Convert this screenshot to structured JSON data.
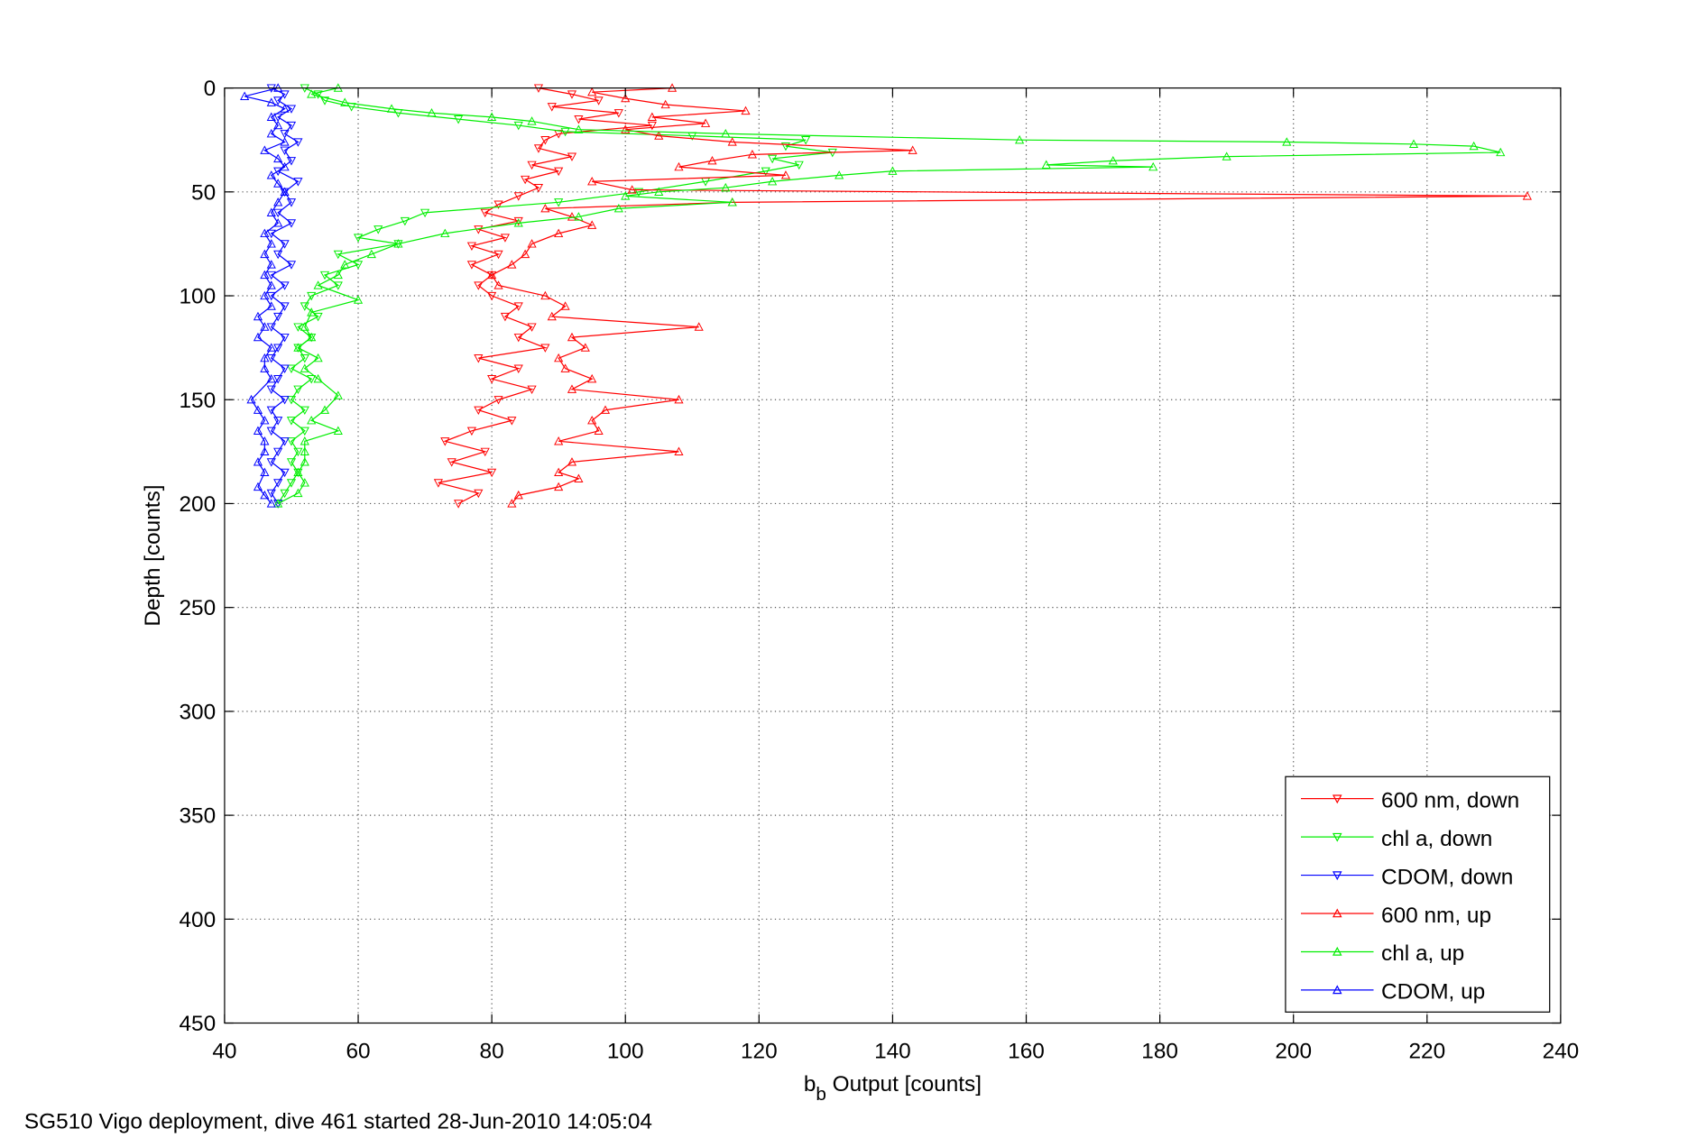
{
  "chart_data": {
    "type": "line",
    "title": "",
    "xlabel_main": "b",
    "xlabel_sub": "b",
    "xlabel_rest": " Output [counts]",
    "ylabel": "Depth [counts]",
    "xlim": [
      40,
      240
    ],
    "ylim": [
      0,
      450
    ],
    "y_reversed": true,
    "grid": true,
    "xticks": [
      40,
      60,
      80,
      100,
      120,
      140,
      160,
      180,
      200,
      220,
      240
    ],
    "yticks": [
      0,
      50,
      100,
      150,
      200,
      250,
      300,
      350,
      400,
      450
    ],
    "legend_position": "bottom-right",
    "footer": "SG510 Vigo deployment, dive 461 started 28-Jun-2010 14:05:04",
    "series": [
      {
        "name": "600 nm, down",
        "color": "#ff0000",
        "marker": "down",
        "points": [
          [
            87,
            0
          ],
          [
            92,
            3
          ],
          [
            96,
            6
          ],
          [
            89,
            9
          ],
          [
            99,
            12
          ],
          [
            93,
            15
          ],
          [
            104,
            18
          ],
          [
            90,
            22
          ],
          [
            88,
            25
          ],
          [
            87,
            29
          ],
          [
            92,
            33
          ],
          [
            86,
            37
          ],
          [
            90,
            40
          ],
          [
            85,
            44
          ],
          [
            87,
            48
          ],
          [
            84,
            52
          ],
          [
            81,
            56
          ],
          [
            79,
            60
          ],
          [
            84,
            64
          ],
          [
            78,
            68
          ],
          [
            82,
            72
          ],
          [
            77,
            76
          ],
          [
            81,
            80
          ],
          [
            77,
            85
          ],
          [
            80,
            90
          ],
          [
            78,
            95
          ],
          [
            80,
            100
          ],
          [
            84,
            105
          ],
          [
            82,
            110
          ],
          [
            86,
            115
          ],
          [
            84,
            120
          ],
          [
            88,
            125
          ],
          [
            78,
            130
          ],
          [
            84,
            135
          ],
          [
            80,
            140
          ],
          [
            86,
            145
          ],
          [
            81,
            150
          ],
          [
            78,
            155
          ],
          [
            83,
            160
          ],
          [
            77,
            165
          ],
          [
            73,
            170
          ],
          [
            79,
            175
          ],
          [
            74,
            180
          ],
          [
            80,
            185
          ],
          [
            72,
            190
          ],
          [
            78,
            195
          ],
          [
            75,
            200
          ]
        ]
      },
      {
        "name": "chl a, down",
        "color": "#00ee00",
        "marker": "down",
        "points": [
          [
            52,
            0
          ],
          [
            54,
            3
          ],
          [
            55,
            6
          ],
          [
            59,
            9
          ],
          [
            66,
            12
          ],
          [
            75,
            15
          ],
          [
            84,
            18
          ],
          [
            91,
            21
          ],
          [
            110,
            23
          ],
          [
            127,
            25
          ],
          [
            124,
            28
          ],
          [
            131,
            31
          ],
          [
            122,
            34
          ],
          [
            126,
            37
          ],
          [
            121,
            40
          ],
          [
            112,
            45
          ],
          [
            102,
            50
          ],
          [
            90,
            55
          ],
          [
            70,
            60
          ],
          [
            67,
            64
          ],
          [
            63,
            68
          ],
          [
            60,
            72
          ],
          [
            66,
            75
          ],
          [
            57,
            80
          ],
          [
            60,
            85
          ],
          [
            55,
            90
          ],
          [
            57,
            95
          ],
          [
            53,
            100
          ],
          [
            52,
            105
          ],
          [
            54,
            110
          ],
          [
            51,
            115
          ],
          [
            53,
            120
          ],
          [
            51,
            125
          ],
          [
            52,
            130
          ],
          [
            50,
            135
          ],
          [
            53,
            140
          ],
          [
            51,
            145
          ],
          [
            50,
            150
          ],
          [
            52,
            155
          ],
          [
            50,
            160
          ],
          [
            52,
            165
          ],
          [
            50,
            170
          ],
          [
            51,
            175
          ],
          [
            50,
            180
          ],
          [
            51,
            185
          ],
          [
            50,
            190
          ],
          [
            49,
            195
          ],
          [
            48,
            200
          ]
        ]
      },
      {
        "name": "CDOM, down",
        "color": "#0000ff",
        "marker": "down",
        "points": [
          [
            47,
            0
          ],
          [
            49,
            3
          ],
          [
            48,
            6
          ],
          [
            50,
            10
          ],
          [
            48,
            14
          ],
          [
            50,
            18
          ],
          [
            49,
            22
          ],
          [
            51,
            26
          ],
          [
            49,
            30
          ],
          [
            50,
            35
          ],
          [
            48,
            40
          ],
          [
            51,
            45
          ],
          [
            49,
            50
          ],
          [
            50,
            55
          ],
          [
            48,
            60
          ],
          [
            50,
            65
          ],
          [
            47,
            70
          ],
          [
            49,
            75
          ],
          [
            48,
            80
          ],
          [
            50,
            85
          ],
          [
            47,
            90
          ],
          [
            49,
            95
          ],
          [
            47,
            100
          ],
          [
            49,
            105
          ],
          [
            48,
            110
          ],
          [
            47,
            115
          ],
          [
            49,
            120
          ],
          [
            48,
            125
          ],
          [
            47,
            130
          ],
          [
            49,
            135
          ],
          [
            48,
            140
          ],
          [
            47,
            145
          ],
          [
            49,
            150
          ],
          [
            47,
            155
          ],
          [
            48,
            160
          ],
          [
            47,
            165
          ],
          [
            49,
            170
          ],
          [
            48,
            175
          ],
          [
            47,
            180
          ],
          [
            49,
            185
          ],
          [
            48,
            190
          ],
          [
            47,
            195
          ],
          [
            48,
            200
          ]
        ]
      },
      {
        "name": "600 nm, up",
        "color": "#ff0000",
        "marker": "up",
        "points": [
          [
            107,
            0
          ],
          [
            95,
            2
          ],
          [
            100,
            5
          ],
          [
            106,
            8
          ],
          [
            118,
            11
          ],
          [
            104,
            14
          ],
          [
            112,
            17
          ],
          [
            100,
            20
          ],
          [
            105,
            23
          ],
          [
            116,
            26
          ],
          [
            143,
            30
          ],
          [
            119,
            32
          ],
          [
            113,
            35
          ],
          [
            108,
            38
          ],
          [
            124,
            42
          ],
          [
            95,
            45
          ],
          [
            101,
            49
          ],
          [
            235,
            52
          ],
          [
            116,
            55
          ],
          [
            88,
            58
          ],
          [
            92,
            62
          ],
          [
            95,
            66
          ],
          [
            90,
            70
          ],
          [
            86,
            75
          ],
          [
            85,
            80
          ],
          [
            83,
            85
          ],
          [
            80,
            90
          ],
          [
            81,
            95
          ],
          [
            88,
            100
          ],
          [
            91,
            105
          ],
          [
            89,
            110
          ],
          [
            111,
            115
          ],
          [
            92,
            120
          ],
          [
            94,
            125
          ],
          [
            90,
            130
          ],
          [
            91,
            135
          ],
          [
            95,
            140
          ],
          [
            92,
            145
          ],
          [
            108,
            150
          ],
          [
            97,
            155
          ],
          [
            95,
            160
          ],
          [
            96,
            165
          ],
          [
            90,
            170
          ],
          [
            108,
            175
          ],
          [
            92,
            180
          ],
          [
            90,
            185
          ],
          [
            93,
            188
          ],
          [
            90,
            192
          ],
          [
            84,
            196
          ],
          [
            83,
            200
          ]
        ]
      },
      {
        "name": "chl a, up",
        "color": "#00ee00",
        "marker": "up",
        "points": [
          [
            57,
            0
          ],
          [
            53,
            3
          ],
          [
            58,
            7
          ],
          [
            65,
            10
          ],
          [
            71,
            12
          ],
          [
            80,
            14
          ],
          [
            86,
            16
          ],
          [
            93,
            20
          ],
          [
            115,
            22
          ],
          [
            159,
            25
          ],
          [
            199,
            26
          ],
          [
            218,
            27
          ],
          [
            227,
            28
          ],
          [
            231,
            31
          ],
          [
            190,
            33
          ],
          [
            173,
            35
          ],
          [
            163,
            37
          ],
          [
            179,
            38
          ],
          [
            140,
            40
          ],
          [
            132,
            42
          ],
          [
            122,
            45
          ],
          [
            115,
            48
          ],
          [
            105,
            50
          ],
          [
            100,
            52
          ],
          [
            116,
            55
          ],
          [
            99,
            58
          ],
          [
            93,
            62
          ],
          [
            84,
            65
          ],
          [
            73,
            70
          ],
          [
            66,
            75
          ],
          [
            62,
            80
          ],
          [
            58,
            85
          ],
          [
            57,
            90
          ],
          [
            54,
            95
          ],
          [
            60,
            102
          ],
          [
            53,
            108
          ],
          [
            52,
            115
          ],
          [
            53,
            120
          ],
          [
            51,
            125
          ],
          [
            54,
            130
          ],
          [
            52,
            135
          ],
          [
            54,
            140
          ],
          [
            57,
            148
          ],
          [
            55,
            155
          ],
          [
            53,
            160
          ],
          [
            57,
            165
          ],
          [
            52,
            170
          ],
          [
            52,
            175
          ],
          [
            52,
            180
          ],
          [
            51,
            185
          ],
          [
            52,
            190
          ],
          [
            51,
            195
          ],
          [
            48,
            200
          ]
        ]
      },
      {
        "name": "CDOM, up",
        "color": "#0000ff",
        "marker": "up",
        "points": [
          [
            48,
            0
          ],
          [
            43,
            4
          ],
          [
            47,
            7
          ],
          [
            49,
            10
          ],
          [
            47,
            14
          ],
          [
            48,
            18
          ],
          [
            47,
            22
          ],
          [
            49,
            26
          ],
          [
            46,
            30
          ],
          [
            48,
            34
          ],
          [
            49,
            38
          ],
          [
            47,
            42
          ],
          [
            48,
            46
          ],
          [
            49,
            50
          ],
          [
            48,
            55
          ],
          [
            47,
            60
          ],
          [
            48,
            65
          ],
          [
            46,
            70
          ],
          [
            47,
            75
          ],
          [
            46,
            80
          ],
          [
            47,
            85
          ],
          [
            46,
            90
          ],
          [
            47,
            95
          ],
          [
            46,
            100
          ],
          [
            47,
            105
          ],
          [
            45,
            110
          ],
          [
            46,
            115
          ],
          [
            45,
            120
          ],
          [
            47,
            125
          ],
          [
            46,
            130
          ],
          [
            46,
            135
          ],
          [
            47,
            140
          ],
          [
            44,
            150
          ],
          [
            45,
            155
          ],
          [
            46,
            160
          ],
          [
            45,
            165
          ],
          [
            46,
            170
          ],
          [
            46,
            175
          ],
          [
            45,
            180
          ],
          [
            46,
            185
          ],
          [
            45,
            192
          ],
          [
            46,
            196
          ],
          [
            47,
            200
          ]
        ]
      }
    ]
  }
}
